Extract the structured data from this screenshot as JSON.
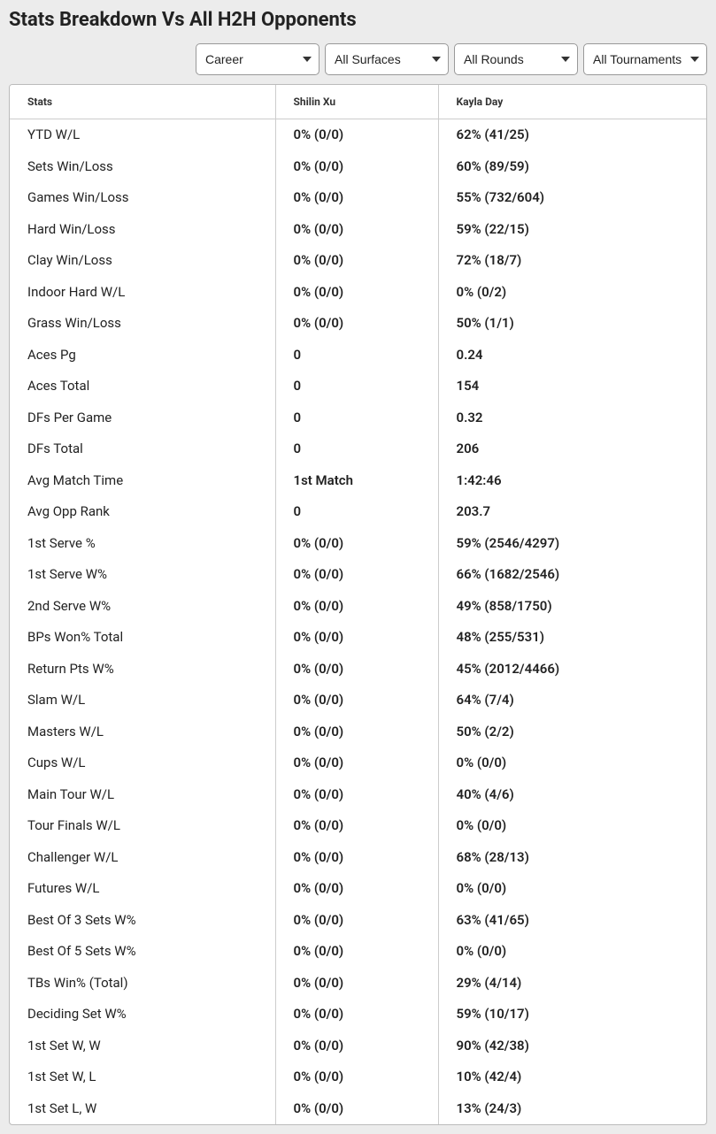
{
  "title": "Stats Breakdown Vs All H2H Opponents",
  "filters": {
    "career": "Career",
    "surfaces": "All Surfaces",
    "rounds": "All Rounds",
    "tournaments": "All Tournaments"
  },
  "table": {
    "headers": {
      "stats": "Stats",
      "p1": "Shilin Xu",
      "p2": "Kayla Day"
    },
    "rows": [
      {
        "stat": "YTD W/L",
        "p1": "0% (0/0)",
        "p2": "62% (41/25)"
      },
      {
        "stat": "Sets Win/Loss",
        "p1": "0% (0/0)",
        "p2": "60% (89/59)"
      },
      {
        "stat": "Games Win/Loss",
        "p1": "0% (0/0)",
        "p2": "55% (732/604)"
      },
      {
        "stat": "Hard Win/Loss",
        "p1": "0% (0/0)",
        "p2": "59% (22/15)"
      },
      {
        "stat": "Clay Win/Loss",
        "p1": "0% (0/0)",
        "p2": "72% (18/7)"
      },
      {
        "stat": "Indoor Hard W/L",
        "p1": "0% (0/0)",
        "p2": "0% (0/2)"
      },
      {
        "stat": "Grass Win/Loss",
        "p1": "0% (0/0)",
        "p2": "50% (1/1)"
      },
      {
        "stat": "Aces Pg",
        "p1": "0",
        "p2": "0.24"
      },
      {
        "stat": "Aces Total",
        "p1": "0",
        "p2": "154"
      },
      {
        "stat": "DFs Per Game",
        "p1": "0",
        "p2": "0.32"
      },
      {
        "stat": "DFs Total",
        "p1": "0",
        "p2": "206"
      },
      {
        "stat": "Avg Match Time",
        "p1": "1st Match",
        "p2": "1:42:46"
      },
      {
        "stat": "Avg Opp Rank",
        "p1": "0",
        "p2": "203.7"
      },
      {
        "stat": "1st Serve %",
        "p1": "0% (0/0)",
        "p2": "59% (2546/4297)"
      },
      {
        "stat": "1st Serve W%",
        "p1": "0% (0/0)",
        "p2": "66% (1682/2546)"
      },
      {
        "stat": "2nd Serve W%",
        "p1": "0% (0/0)",
        "p2": "49% (858/1750)"
      },
      {
        "stat": "BPs Won% Total",
        "p1": "0% (0/0)",
        "p2": "48% (255/531)"
      },
      {
        "stat": "Return Pts W%",
        "p1": "0% (0/0)",
        "p2": "45% (2012/4466)"
      },
      {
        "stat": "Slam W/L",
        "p1": "0% (0/0)",
        "p2": "64% (7/4)"
      },
      {
        "stat": "Masters W/L",
        "p1": "0% (0/0)",
        "p2": "50% (2/2)"
      },
      {
        "stat": "Cups W/L",
        "p1": "0% (0/0)",
        "p2": "0% (0/0)"
      },
      {
        "stat": "Main Tour W/L",
        "p1": "0% (0/0)",
        "p2": "40% (4/6)"
      },
      {
        "stat": "Tour Finals W/L",
        "p1": "0% (0/0)",
        "p2": "0% (0/0)"
      },
      {
        "stat": "Challenger W/L",
        "p1": "0% (0/0)",
        "p2": "68% (28/13)"
      },
      {
        "stat": "Futures W/L",
        "p1": "0% (0/0)",
        "p2": "0% (0/0)"
      },
      {
        "stat": "Best Of 3 Sets W%",
        "p1": "0% (0/0)",
        "p2": "63% (41/65)"
      },
      {
        "stat": "Best Of 5 Sets W%",
        "p1": "0% (0/0)",
        "p2": "0% (0/0)"
      },
      {
        "stat": "TBs Win% (Total)",
        "p1": "0% (0/0)",
        "p2": "29% (4/14)"
      },
      {
        "stat": "Deciding Set W%",
        "p1": "0% (0/0)",
        "p2": "59% (10/17)"
      },
      {
        "stat": "1st Set W, W",
        "p1": "0% (0/0)",
        "p2": "90% (42/38)"
      },
      {
        "stat": "1st Set W, L",
        "p1": "0% (0/0)",
        "p2": "10% (42/4)"
      },
      {
        "stat": "1st Set L, W",
        "p1": "0% (0/0)",
        "p2": "13% (24/3)"
      }
    ]
  },
  "colors": {
    "page_bg": "#ececec",
    "card_bg": "#ffffff",
    "border": "#cccccc",
    "text": "#222222"
  }
}
